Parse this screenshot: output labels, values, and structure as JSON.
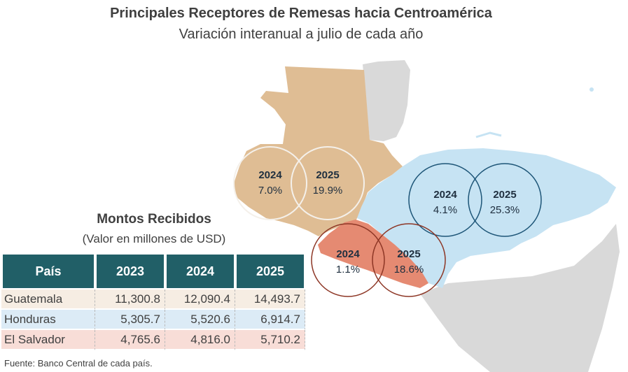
{
  "header": {
    "title": "Principales Receptores de Remesas hacia Centroamérica",
    "subtitle": "Variación interanual a julio de cada año"
  },
  "map": {
    "countries": [
      {
        "name": "Guatemala",
        "color": "#dfbd94",
        "bubbles": [
          {
            "year": "2024",
            "value": "7.0%"
          },
          {
            "year": "2025",
            "value": "19.9%"
          }
        ],
        "ring_color": "#f4f0ea"
      },
      {
        "name": "Honduras",
        "color": "#c6e3f3",
        "bubbles": [
          {
            "year": "2024",
            "value": "4.1%"
          },
          {
            "year": "2025",
            "value": "25.3%"
          }
        ],
        "ring_color": "#1d5577"
      },
      {
        "name": "El Salvador",
        "color": "#e58a72",
        "bubbles": [
          {
            "year": "2024",
            "value": "1.1%"
          },
          {
            "year": "2025",
            "value": "18.6%"
          }
        ],
        "ring_color": "#8d3625"
      }
    ],
    "background_land_color": "#d9d9d9"
  },
  "table": {
    "title": "Montos Recibidos",
    "subtitle": "(Valor en millones de USD)",
    "headers": [
      "País",
      "2023",
      "2024",
      "2025"
    ],
    "rows": [
      {
        "pais": "Guatemala",
        "v2023": "11,300.8",
        "v2024": "12,090.4",
        "v2025": "14,493.7"
      },
      {
        "pais": "Honduras",
        "v2023": "5,305.7",
        "v2024": "5,520.6",
        "v2025": "6,914.7"
      },
      {
        "pais": "El Salvador",
        "v2023": "4,765.6",
        "v2024": "4,816.0",
        "v2025": "5,710.2"
      }
    ]
  },
  "source": "Fuente: Banco Central de cada país."
}
